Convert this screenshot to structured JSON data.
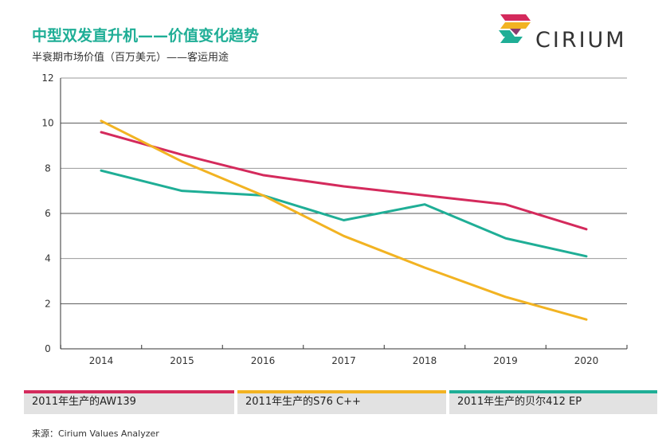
{
  "title": "中型双发直升机——价值变化趋势",
  "subtitle": "半衰期市场价值（百万美元）——客运用途",
  "logo": {
    "text": "CIRIUM"
  },
  "source": "来源：Cirium Values Analyzer",
  "colors": {
    "title": "#1fae96",
    "aw139": "#d42a5c",
    "s76": "#f2b322",
    "bell412": "#1fae96",
    "grid": "#555555",
    "axis": "#333333"
  },
  "chart_data": {
    "type": "line",
    "x": [
      2014,
      2015,
      2016,
      2017,
      2018,
      2019,
      2020
    ],
    "categories": [
      "2014",
      "2015",
      "2016",
      "2017",
      "2018",
      "2019",
      "2020"
    ],
    "ylim": [
      0,
      12
    ],
    "yticks": [
      "0",
      "2",
      "4",
      "6",
      "8",
      "10",
      "12"
    ],
    "grid": true,
    "legend_position": "bottom",
    "series": [
      {
        "name": "2011年生产的AW139",
        "color": "#d42a5c",
        "values": [
          9.6,
          8.6,
          7.7,
          7.2,
          6.8,
          6.4,
          5.3
        ]
      },
      {
        "name": "2011年生产的S76 C++",
        "color": "#f2b322",
        "values": [
          10.1,
          8.3,
          6.8,
          5.0,
          3.6,
          2.3,
          1.3
        ]
      },
      {
        "name": "2011年生产的贝尔412 EP",
        "color": "#1fae96",
        "values": [
          7.9,
          7.0,
          6.8,
          5.7,
          6.4,
          4.9,
          4.1
        ]
      }
    ]
  }
}
